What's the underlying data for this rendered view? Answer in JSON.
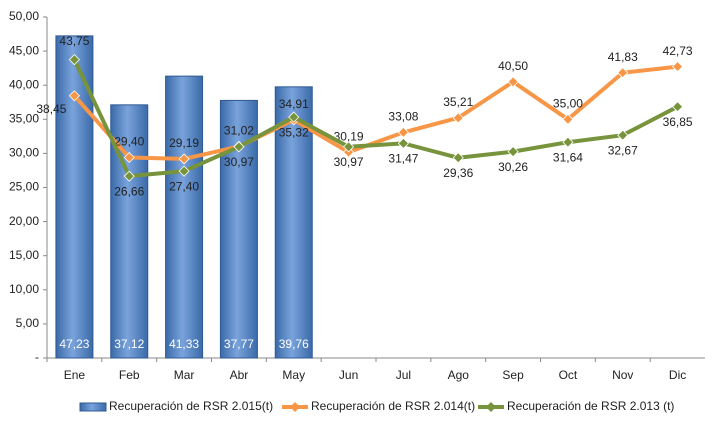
{
  "chart_data": {
    "type": "bar-line",
    "categories": [
      "Ene",
      "Feb",
      "Mar",
      "Abr",
      "May",
      "Jun",
      "Jul",
      "Ago",
      "Sep",
      "Oct",
      "Nov",
      "Dic"
    ],
    "series": [
      {
        "name": "Recuperación de RSR 2.015(t)",
        "type": "bar",
        "color": "#4f81bd",
        "values": [
          47.23,
          37.12,
          41.33,
          37.77,
          39.76,
          null,
          null,
          null,
          null,
          null,
          null,
          null
        ],
        "value_labels": [
          "47,23",
          "37,12",
          "41,33",
          "37,77",
          "39,76",
          null,
          null,
          null,
          null,
          null,
          null,
          null
        ]
      },
      {
        "name": "Recuperación de RSR 2.014(t)",
        "type": "line",
        "color": "#f79646",
        "values": [
          38.45,
          29.4,
          29.19,
          31.02,
          34.91,
          30.19,
          33.08,
          35.21,
          40.5,
          35.0,
          41.83,
          42.73
        ],
        "value_labels": [
          "38,45",
          "29,40",
          "29,19",
          "31,02",
          "34,91",
          "30,19",
          "33,08",
          "35,21",
          "40,50",
          "35,00",
          "41,83",
          "42,73"
        ]
      },
      {
        "name": "Recuperación de RSR 2.013 (t)",
        "type": "line",
        "color": "#77933c",
        "values": [
          43.75,
          26.66,
          27.4,
          30.97,
          35.32,
          30.97,
          31.47,
          29.36,
          30.26,
          31.64,
          32.67,
          36.85
        ],
        "value_labels": [
          "43,75",
          "26,66",
          "27,40",
          "30,97",
          "35,32",
          "30,97",
          "31,47",
          "29,36",
          "30,26",
          "31,64",
          "32,67",
          "36,85"
        ]
      }
    ],
    "ylim": [
      0,
      50
    ],
    "yticks": [
      {
        "value": 0,
        "label": "-"
      },
      {
        "value": 5,
        "label": "5,00"
      },
      {
        "value": 10,
        "label": "10,00"
      },
      {
        "value": 15,
        "label": "15,00"
      },
      {
        "value": 20,
        "label": "20,00"
      },
      {
        "value": 25,
        "label": "25,00"
      },
      {
        "value": 30,
        "label": "30,00"
      },
      {
        "value": 35,
        "label": "35,00"
      },
      {
        "value": 40,
        "label": "40,00"
      },
      {
        "value": 45,
        "label": "45,00"
      },
      {
        "value": 50,
        "label": "50,00"
      }
    ],
    "legend": "bottom"
  }
}
